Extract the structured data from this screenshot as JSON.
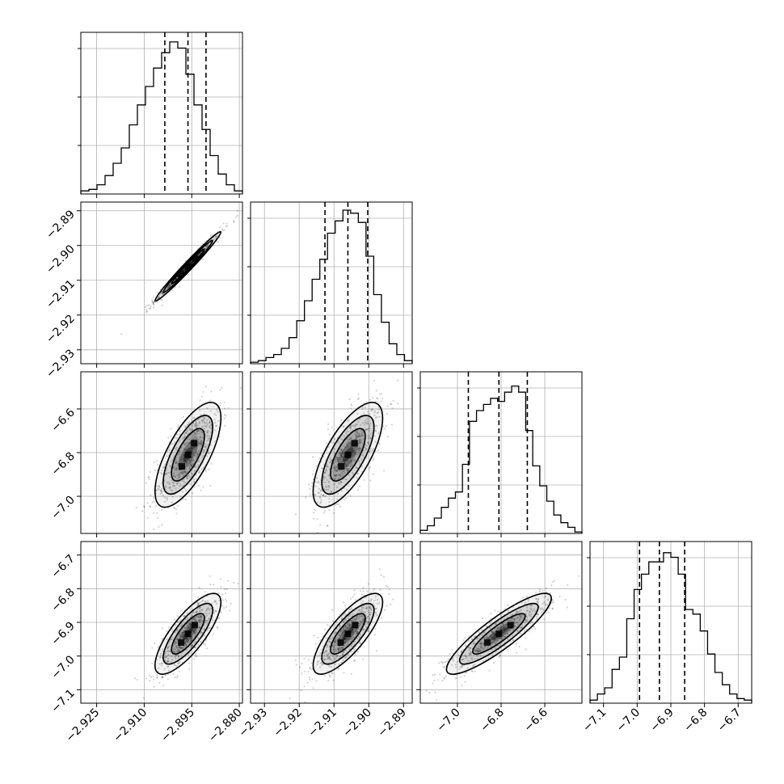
{
  "chart_data": {
    "type": "corner",
    "title": "",
    "grid": true,
    "parameters": [
      {
        "index": 0,
        "range": [
          -2.93,
          -2.879
        ],
        "ticks": [
          -2.925,
          -2.91,
          -2.895,
          -2.88
        ],
        "tick_labels": [
          "−2.925",
          "−2.910",
          "−2.895",
          "−2.880"
        ],
        "quantiles": [
          -2.9035,
          -2.8962,
          -2.8905
        ],
        "histogram": [
          0.02,
          0.03,
          0.06,
          0.12,
          0.2,
          0.3,
          0.45,
          0.58,
          0.7,
          0.82,
          0.92,
          0.99,
          0.95,
          0.78,
          0.58,
          0.42,
          0.25,
          0.13,
          0.06,
          0.02
        ]
      },
      {
        "index": 1,
        "range": [
          -2.934,
          -2.8875
        ],
        "ticks": [
          -2.93,
          -2.92,
          -2.91,
          -2.9,
          -2.89
        ],
        "tick_labels": [
          "−2.93",
          "−2.92",
          "−2.91",
          "−2.90",
          "−2.89"
        ],
        "quantiles": [
          -2.9126,
          -2.906,
          -2.9003
        ],
        "histogram": [
          0.01,
          0.02,
          0.04,
          0.06,
          0.1,
          0.17,
          0.28,
          0.41,
          0.55,
          0.68,
          0.85,
          0.93,
          1.0,
          0.98,
          0.92,
          0.7,
          0.45,
          0.27,
          0.13,
          0.06,
          0.02
        ]
      },
      {
        "index": 2,
        "range": [
          -7.17,
          -6.43
        ],
        "ticks": [
          -7.0,
          -6.8,
          -6.6
        ],
        "tick_labels": [
          "−7.0",
          "−6.8",
          "−6.6"
        ],
        "quantiles": [
          -6.95,
          -6.81,
          -6.68
        ],
        "histogram": [
          0.02,
          0.05,
          0.1,
          0.17,
          0.23,
          0.27,
          0.45,
          0.73,
          0.8,
          0.84,
          0.88,
          0.86,
          0.92,
          0.96,
          0.92,
          0.67,
          0.44,
          0.31,
          0.21,
          0.12,
          0.07,
          0.04,
          0.01
        ]
      },
      {
        "index": 3,
        "range": [
          -7.14,
          -6.66
        ],
        "ticks": [
          -7.1,
          -7.0,
          -6.9,
          -6.8,
          -6.7
        ],
        "tick_labels": [
          "−7.1",
          "−7.0",
          "−6.9",
          "−6.8",
          "−6.7"
        ],
        "quantiles": [
          -6.993,
          -6.934,
          -6.859
        ],
        "histogram": [
          0.02,
          0.06,
          0.1,
          0.22,
          0.3,
          0.55,
          0.74,
          0.84,
          0.92,
          0.92,
          0.98,
          0.95,
          0.84,
          0.61,
          0.58,
          0.47,
          0.32,
          0.2,
          0.12,
          0.06,
          0.03,
          0.02
        ]
      }
    ],
    "pairs": [
      {
        "x": 0,
        "y": 1,
        "mean": [
          -2.8962,
          -2.906
        ],
        "sd": [
          0.0052,
          0.005
        ],
        "corr": 0.985
      },
      {
        "x": 0,
        "y": 2,
        "mean": [
          -2.8962,
          -6.81
        ],
        "sd": [
          0.0052,
          0.12
        ],
        "corr": 0.7
      },
      {
        "x": 1,
        "y": 2,
        "mean": [
          -2.906,
          -6.81
        ],
        "sd": [
          0.005,
          0.12
        ],
        "corr": 0.7
      },
      {
        "x": 0,
        "y": 3,
        "mean": [
          -2.8962,
          -6.934
        ],
        "sd": [
          0.0052,
          0.06
        ],
        "corr": 0.78
      },
      {
        "x": 1,
        "y": 3,
        "mean": [
          -2.906,
          -6.934
        ],
        "sd": [
          0.005,
          0.06
        ],
        "corr": 0.78
      },
      {
        "x": 2,
        "y": 3,
        "mean": [
          -6.81,
          -6.934
        ],
        "sd": [
          0.12,
          0.06
        ],
        "corr": 0.88
      }
    ],
    "contour_levels_sigma": [
      1,
      1.5,
      2
    ]
  }
}
